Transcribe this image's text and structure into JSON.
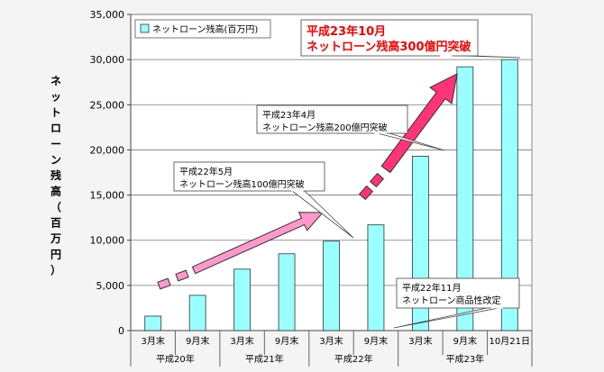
{
  "chart_data": {
    "type": "bar",
    "ylabel": "ネットローン残高（百万円）",
    "ylim": [
      0,
      35000
    ],
    "yticks": [
      0,
      5000,
      10000,
      15000,
      20000,
      25000,
      30000,
      35000
    ],
    "ytick_labels": [
      "0",
      "5,000",
      "10,000",
      "15,000",
      "20,000",
      "25,000",
      "30,000",
      "35,000"
    ],
    "grid": true,
    "legend_position": "top-left",
    "categories": [
      "3月末",
      "9月末",
      "3月末",
      "9月末",
      "3月末",
      "9月末",
      "3月末",
      "9月末",
      "10月21日"
    ],
    "groups": [
      {
        "label": "平成20年",
        "count": 2
      },
      {
        "label": "平成21年",
        "count": 2
      },
      {
        "label": "平成22年",
        "count": 2
      },
      {
        "label": "平成23年",
        "count": 3
      }
    ],
    "series": [
      {
        "name": "ネットローン残高(百万円)",
        "color": "#99ffff",
        "values": [
          1600,
          3900,
          6800,
          8500,
          9900,
          11700,
          19300,
          29200,
          30000
        ]
      }
    ],
    "annotations": [
      {
        "lines": [
          "平成22年11月",
          "ネットローン商品性改定"
        ],
        "target": 5,
        "emphasis": false
      },
      {
        "lines": [
          "平成22年5月",
          "ネットローン残高100億円突破"
        ],
        "target": 4,
        "emphasis": false
      },
      {
        "lines": [
          "平成23年4月",
          "ネットローン残高200億円突破"
        ],
        "target": 6,
        "emphasis": false
      },
      {
        "lines": [
          "平成23年10月",
          "ネットローン残高300億円突破"
        ],
        "target": 8,
        "emphasis": true
      }
    ],
    "arrow_colors": {
      "light": "#ff99cc",
      "strong": "#ff3377",
      "outline": "#333333",
      "emphasis_text": "#ff0000"
    }
  }
}
